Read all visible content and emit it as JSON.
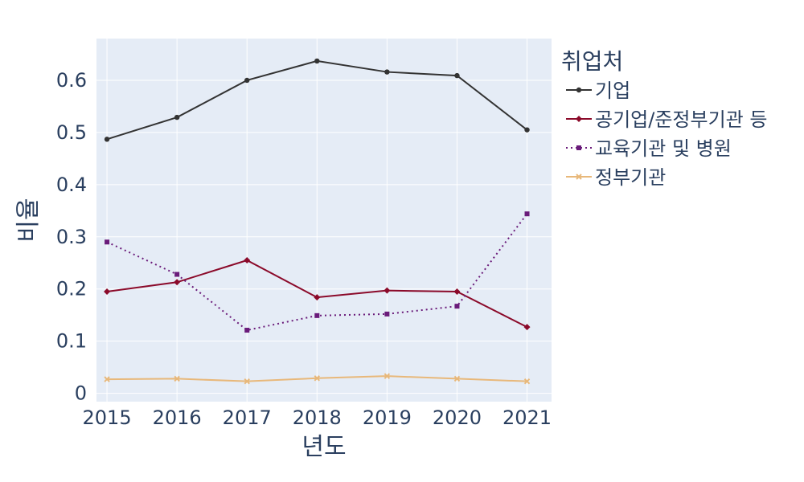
{
  "chart_data": {
    "type": "line",
    "xlabel": "년도",
    "ylabel": "비율",
    "x": [
      2015,
      2016,
      2017,
      2018,
      2019,
      2020,
      2021
    ],
    "xlim": [
      2014.85,
      2021.35
    ],
    "ylim": [
      -0.016,
      0.68
    ],
    "yticks": [
      0,
      0.1,
      0.2,
      0.3,
      0.4,
      0.5,
      0.6
    ],
    "ytick_labels": [
      "0",
      "0.1",
      "0.2",
      "0.3",
      "0.4",
      "0.5",
      "0.6"
    ],
    "grid": true,
    "legend": {
      "title": "취업처",
      "placement": "right"
    },
    "series": [
      {
        "name": "기업",
        "color": "#333333",
        "marker": "circle",
        "dash": "solid",
        "values": [
          0.487,
          0.529,
          0.6,
          0.637,
          0.616,
          0.609,
          0.505
        ]
      },
      {
        "name": "공기업/준정부기관 등",
        "color": "#8b0a2a",
        "marker": "diamond",
        "dash": "solid",
        "values": [
          0.195,
          0.213,
          0.255,
          0.184,
          0.197,
          0.195,
          0.127
        ]
      },
      {
        "name": "교육기관 및 병원",
        "color": "#6a1b7a",
        "marker": "square",
        "dash": "dot",
        "values": [
          0.29,
          0.228,
          0.121,
          0.149,
          0.152,
          0.167,
          0.344
        ]
      },
      {
        "name": "정부기관",
        "color": "#e8b87a",
        "marker": "x",
        "dash": "solid",
        "values": [
          0.027,
          0.028,
          0.023,
          0.029,
          0.033,
          0.028,
          0.023
        ]
      }
    ]
  }
}
